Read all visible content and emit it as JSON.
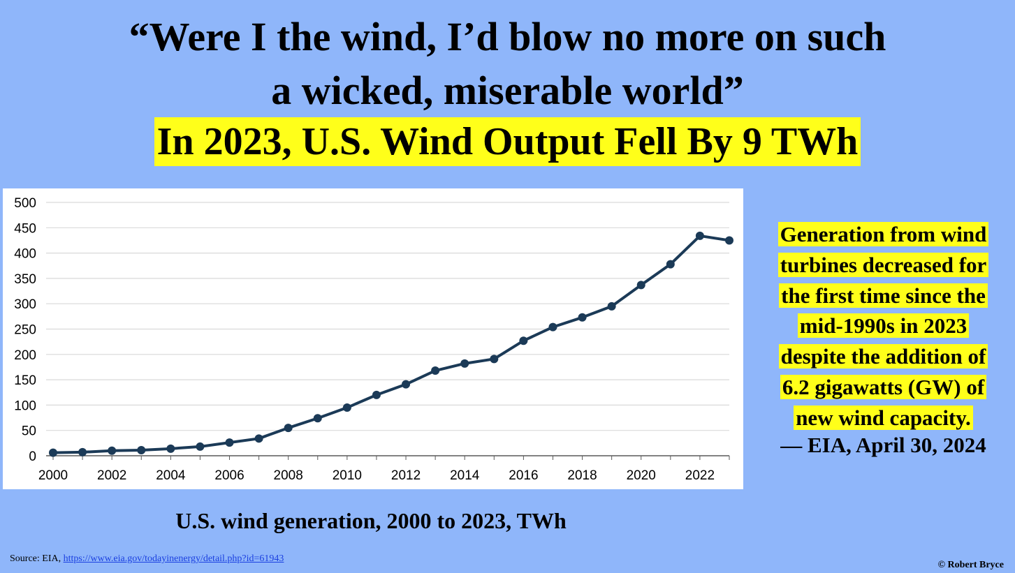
{
  "title": {
    "quote_line1": "“Were I the wind, I’d blow no more on such",
    "quote_line2": "a wicked, miserable world”",
    "headline": "In 2023, U.S. Wind Output Fell By 9 TWh"
  },
  "callout": {
    "lines": [
      "Generation from wind",
      "turbines decreased for",
      "the first time since the",
      "mid-1990s in 2023",
      "despite the addition of",
      "6.2 gigawatts (GW) of",
      "new wind capacity."
    ],
    "attribution": "— EIA, April 30, 2024"
  },
  "caption": "U.S. wind generation, 2000 to 2023, TWh",
  "source": {
    "label": "Source: EIA, ",
    "link_text": "https://www.eia.gov/todayinenergy/detail.php?id=61943"
  },
  "copyright": "© Robert Bryce",
  "colors": {
    "background": "#8fb6fa",
    "highlight": "#ffff1a",
    "line": "#1b3a57",
    "grid": "#d9d9d9"
  },
  "chart_data": {
    "type": "line",
    "x": [
      2000,
      2001,
      2002,
      2003,
      2004,
      2005,
      2006,
      2007,
      2008,
      2009,
      2010,
      2011,
      2012,
      2013,
      2014,
      2015,
      2016,
      2017,
      2018,
      2019,
      2020,
      2021,
      2022,
      2023
    ],
    "series": [
      {
        "values": [
          6,
          7,
          10,
          11,
          14,
          18,
          26,
          34,
          55,
          74,
          95,
          120,
          141,
          168,
          182,
          191,
          227,
          254,
          273,
          295,
          337,
          378,
          434,
          425
        ]
      }
    ],
    "ylim": [
      0,
      500
    ],
    "yticks": [
      0,
      50,
      100,
      150,
      200,
      250,
      300,
      350,
      400,
      450,
      500
    ],
    "xticks": [
      2000,
      2002,
      2004,
      2006,
      2008,
      2010,
      2012,
      2014,
      2016,
      2018,
      2020,
      2022
    ],
    "grid": true,
    "legend": false
  }
}
